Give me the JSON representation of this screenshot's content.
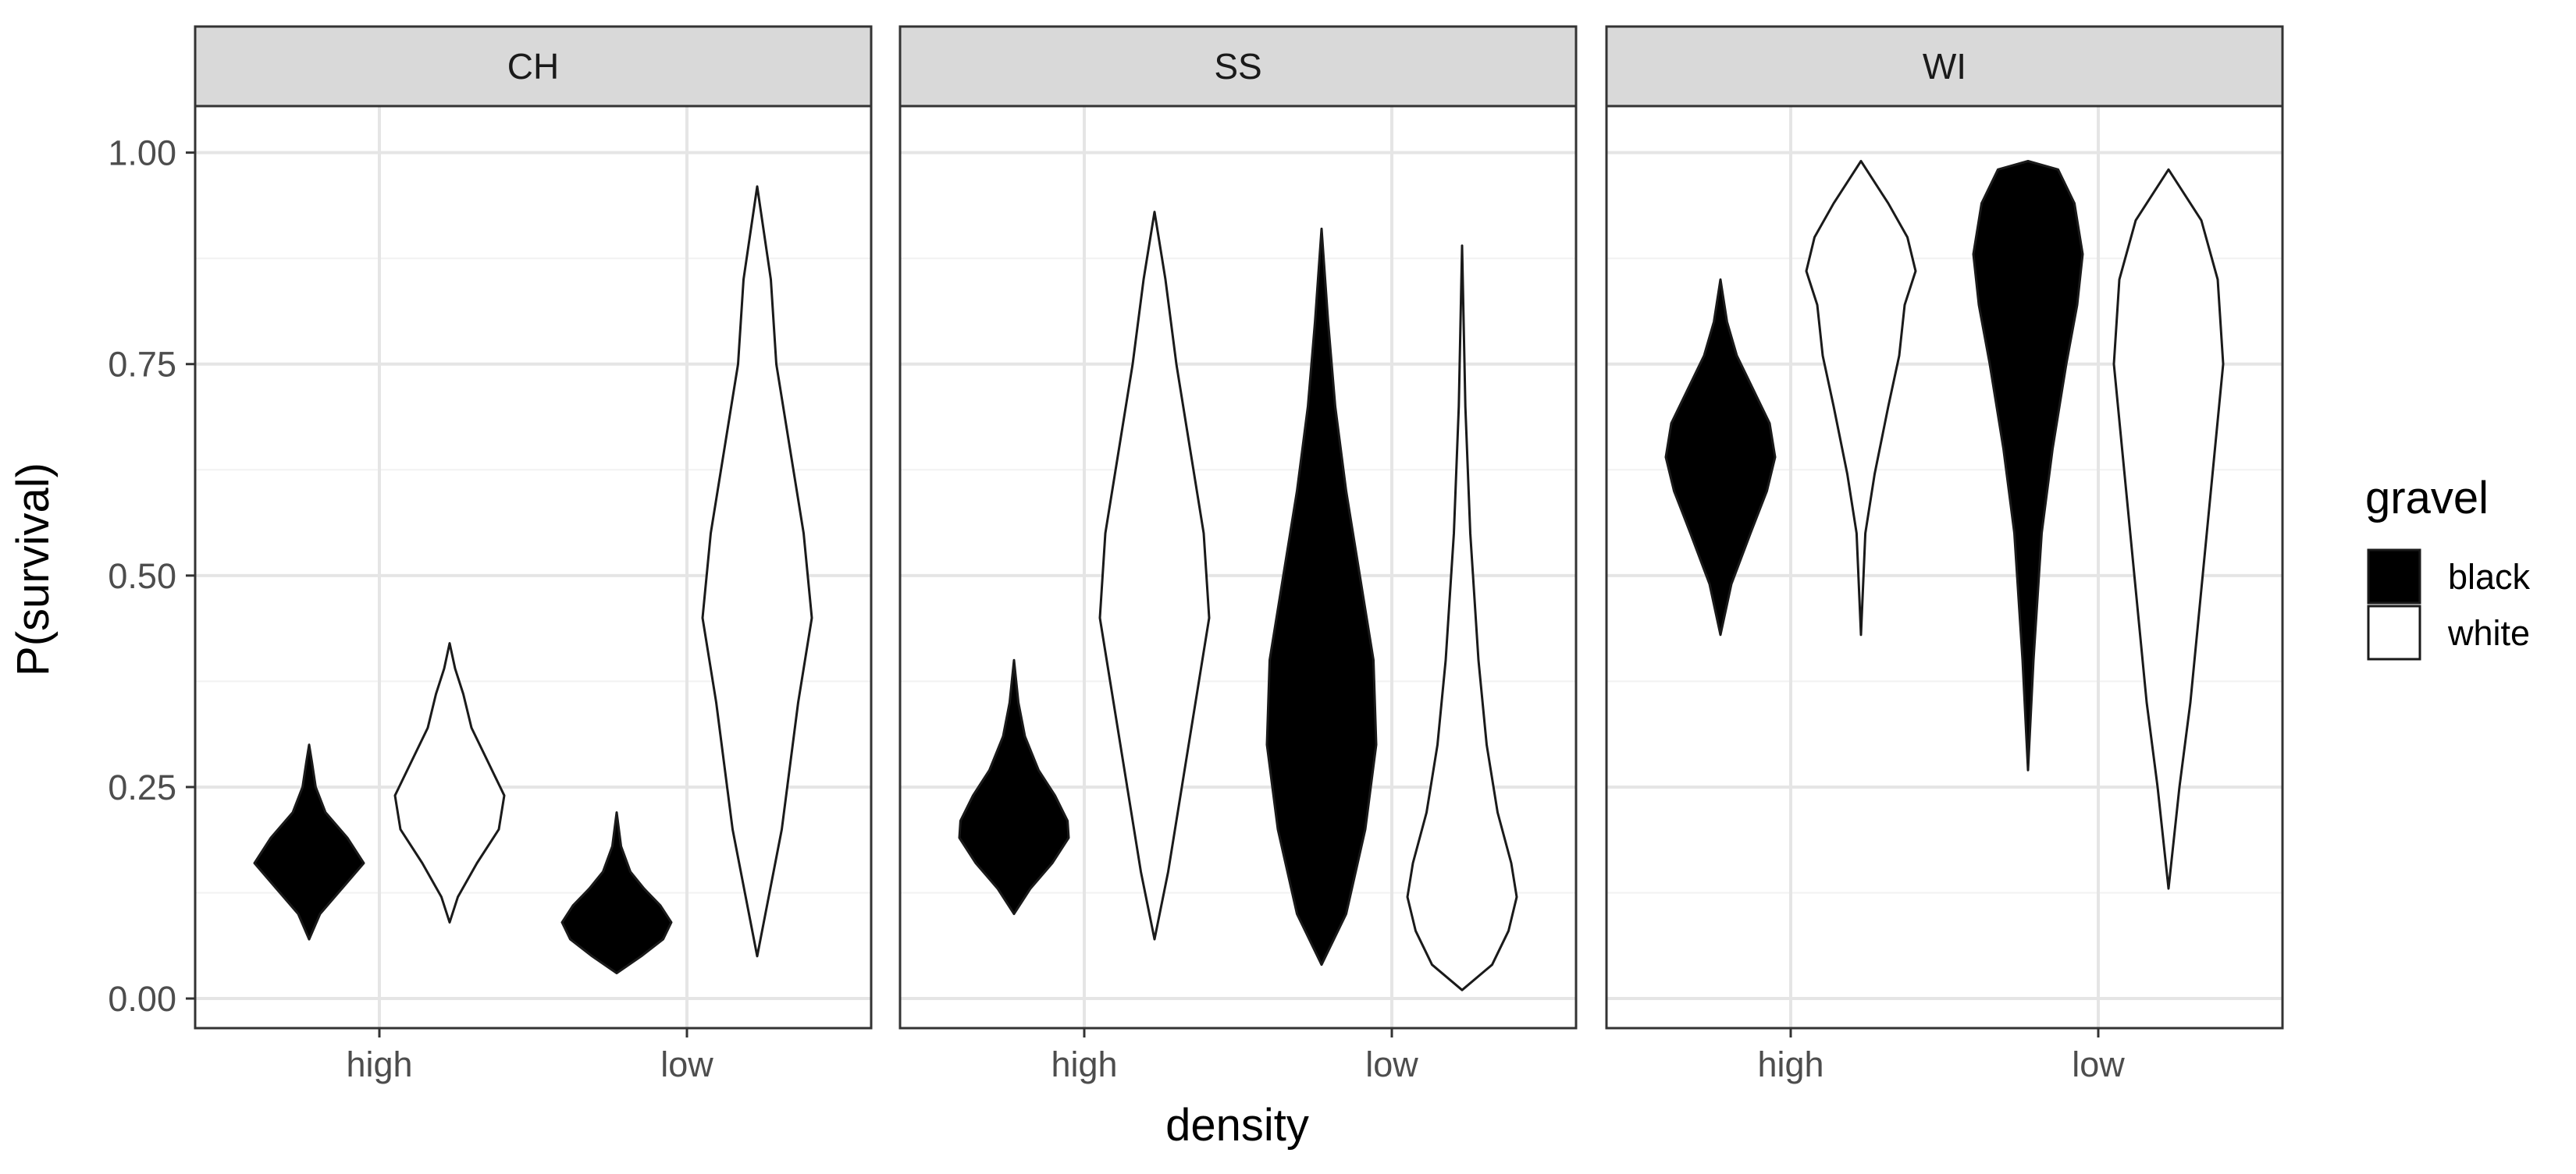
{
  "chart_data": {
    "type": "violin",
    "xlabel": "density",
    "ylabel": "P(survival)",
    "ylim": [
      -0.035,
      1.055
    ],
    "y_ticks": [
      0.0,
      0.25,
      0.5,
      0.75,
      1.0
    ],
    "y_tick_labels": [
      "0.00",
      "0.25",
      "0.50",
      "0.75",
      "1.00"
    ],
    "x_categories": [
      "high",
      "low"
    ],
    "grid": true,
    "legend": {
      "title": "gravel",
      "position": "right",
      "entries": [
        {
          "label": "black",
          "fill": "#000000"
        },
        {
          "label": "white",
          "fill": "#ffffff"
        }
      ]
    },
    "panels": [
      {
        "strip": "CH",
        "violins": [
          {
            "density": "high",
            "gravel": "black",
            "min": 0.07,
            "max": 0.3,
            "profile": [
              [
                0.07,
                0.0
              ],
              [
                0.1,
                0.2
              ],
              [
                0.13,
                0.6
              ],
              [
                0.16,
                1.0
              ],
              [
                0.19,
                0.7
              ],
              [
                0.22,
                0.3
              ],
              [
                0.25,
                0.12
              ],
              [
                0.28,
                0.05
              ],
              [
                0.3,
                0.0
              ]
            ]
          },
          {
            "density": "high",
            "gravel": "white",
            "min": 0.09,
            "max": 0.42,
            "profile": [
              [
                0.09,
                0.0
              ],
              [
                0.12,
                0.15
              ],
              [
                0.16,
                0.5
              ],
              [
                0.2,
                0.9
              ],
              [
                0.24,
                1.0
              ],
              [
                0.28,
                0.7
              ],
              [
                0.32,
                0.4
              ],
              [
                0.36,
                0.25
              ],
              [
                0.39,
                0.1
              ],
              [
                0.42,
                0.0
              ]
            ]
          },
          {
            "density": "low",
            "gravel": "black",
            "min": 0.03,
            "max": 0.22,
            "profile": [
              [
                0.03,
                0.0
              ],
              [
                0.05,
                0.45
              ],
              [
                0.07,
                0.85
              ],
              [
                0.09,
                1.0
              ],
              [
                0.11,
                0.8
              ],
              [
                0.13,
                0.5
              ],
              [
                0.15,
                0.25
              ],
              [
                0.18,
                0.08
              ],
              [
                0.22,
                0.0
              ]
            ]
          },
          {
            "density": "low",
            "gravel": "white",
            "min": 0.05,
            "max": 0.96,
            "profile": [
              [
                0.05,
                0.0
              ],
              [
                0.2,
                0.45
              ],
              [
                0.35,
                0.75
              ],
              [
                0.45,
                1.0
              ],
              [
                0.55,
                0.85
              ],
              [
                0.65,
                0.6
              ],
              [
                0.75,
                0.35
              ],
              [
                0.85,
                0.25
              ],
              [
                0.96,
                0.0
              ]
            ]
          }
        ]
      },
      {
        "strip": "SS",
        "violins": [
          {
            "density": "high",
            "gravel": "black",
            "min": 0.1,
            "max": 0.4,
            "profile": [
              [
                0.1,
                0.0
              ],
              [
                0.13,
                0.3
              ],
              [
                0.16,
                0.7
              ],
              [
                0.19,
                1.0
              ],
              [
                0.21,
                0.98
              ],
              [
                0.24,
                0.75
              ],
              [
                0.27,
                0.45
              ],
              [
                0.31,
                0.2
              ],
              [
                0.35,
                0.08
              ],
              [
                0.4,
                0.0
              ]
            ]
          },
          {
            "density": "high",
            "gravel": "white",
            "min": 0.07,
            "max": 0.93,
            "profile": [
              [
                0.07,
                0.0
              ],
              [
                0.15,
                0.25
              ],
              [
                0.25,
                0.5
              ],
              [
                0.35,
                0.75
              ],
              [
                0.45,
                1.0
              ],
              [
                0.55,
                0.9
              ],
              [
                0.65,
                0.65
              ],
              [
                0.75,
                0.4
              ],
              [
                0.85,
                0.2
              ],
              [
                0.93,
                0.0
              ]
            ]
          },
          {
            "density": "low",
            "gravel": "black",
            "min": 0.04,
            "max": 0.91,
            "profile": [
              [
                0.04,
                0.0
              ],
              [
                0.1,
                0.45
              ],
              [
                0.2,
                0.8
              ],
              [
                0.3,
                1.0
              ],
              [
                0.4,
                0.95
              ],
              [
                0.5,
                0.7
              ],
              [
                0.6,
                0.45
              ],
              [
                0.7,
                0.25
              ],
              [
                0.8,
                0.12
              ],
              [
                0.91,
                0.0
              ]
            ]
          },
          {
            "density": "low",
            "gravel": "white",
            "min": 0.01,
            "max": 0.89,
            "profile": [
              [
                0.01,
                0.0
              ],
              [
                0.04,
                0.55
              ],
              [
                0.08,
                0.85
              ],
              [
                0.12,
                1.0
              ],
              [
                0.16,
                0.9
              ],
              [
                0.22,
                0.65
              ],
              [
                0.3,
                0.45
              ],
              [
                0.4,
                0.3
              ],
              [
                0.55,
                0.15
              ],
              [
                0.7,
                0.06
              ],
              [
                0.89,
                0.0
              ]
            ]
          }
        ]
      },
      {
        "strip": "WI",
        "violins": [
          {
            "density": "high",
            "gravel": "black",
            "min": 0.43,
            "max": 0.85,
            "profile": [
              [
                0.43,
                0.0
              ],
              [
                0.49,
                0.2
              ],
              [
                0.55,
                0.55
              ],
              [
                0.6,
                0.85
              ],
              [
                0.64,
                1.0
              ],
              [
                0.68,
                0.9
              ],
              [
                0.72,
                0.6
              ],
              [
                0.76,
                0.3
              ],
              [
                0.8,
                0.12
              ],
              [
                0.85,
                0.0
              ]
            ]
          },
          {
            "density": "high",
            "gravel": "white",
            "min": 0.43,
            "max": 0.99,
            "profile": [
              [
                0.43,
                0.0
              ],
              [
                0.55,
                0.08
              ],
              [
                0.62,
                0.25
              ],
              [
                0.7,
                0.5
              ],
              [
                0.76,
                0.7
              ],
              [
                0.82,
                0.8
              ],
              [
                0.86,
                1.0
              ],
              [
                0.9,
                0.85
              ],
              [
                0.94,
                0.5
              ],
              [
                0.97,
                0.2
              ],
              [
                0.99,
                0.0
              ]
            ]
          },
          {
            "density": "low",
            "gravel": "black",
            "min": 0.27,
            "max": 0.99,
            "profile": [
              [
                0.27,
                0.0
              ],
              [
                0.4,
                0.1
              ],
              [
                0.55,
                0.25
              ],
              [
                0.65,
                0.45
              ],
              [
                0.75,
                0.7
              ],
              [
                0.82,
                0.9
              ],
              [
                0.88,
                1.0
              ],
              [
                0.94,
                0.85
              ],
              [
                0.98,
                0.55
              ],
              [
                0.99,
                0.0
              ]
            ]
          },
          {
            "density": "low",
            "gravel": "white",
            "min": 0.13,
            "max": 0.98,
            "profile": [
              [
                0.13,
                0.0
              ],
              [
                0.25,
                0.2
              ],
              [
                0.35,
                0.4
              ],
              [
                0.45,
                0.55
              ],
              [
                0.55,
                0.7
              ],
              [
                0.65,
                0.85
              ],
              [
                0.75,
                1.0
              ],
              [
                0.85,
                0.9
              ],
              [
                0.92,
                0.6
              ],
              [
                0.98,
                0.0
              ]
            ]
          }
        ]
      }
    ]
  }
}
